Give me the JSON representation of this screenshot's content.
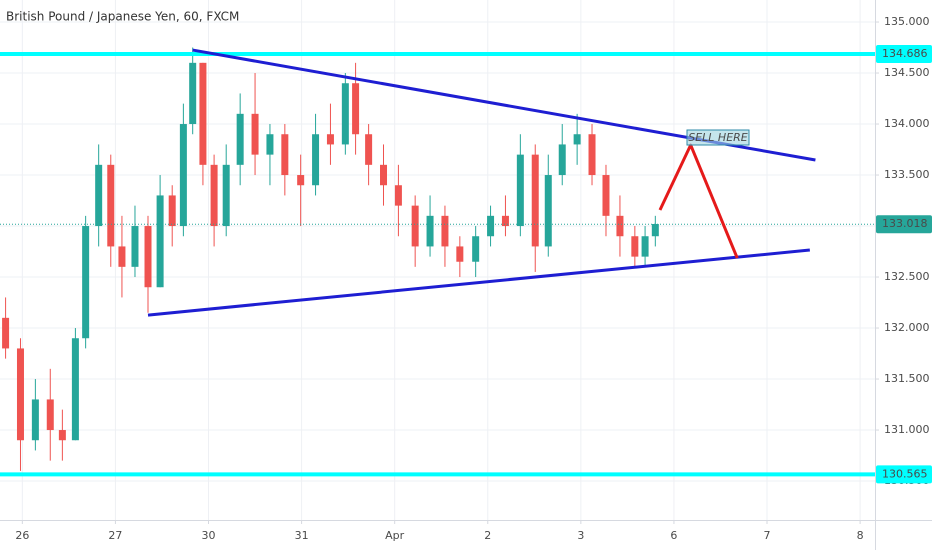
{
  "chart_data": {
    "type": "candlestick",
    "title": "British Pound / Japanese Yen, 60, FXCM",
    "xlim": [
      -0.24,
      9.16
    ],
    "ylim": [
      130.118,
      135.216
    ],
    "grid": true,
    "xticks": [
      {
        "value": 0,
        "label": "26"
      },
      {
        "value": 1,
        "label": "27"
      },
      {
        "value": 2,
        "label": "30"
      },
      {
        "value": 3,
        "label": "31"
      },
      {
        "value": 4,
        "label": "Apr"
      },
      {
        "value": 5,
        "label": "2"
      },
      {
        "value": 6,
        "label": "3"
      },
      {
        "value": 7,
        "label": "6"
      },
      {
        "value": 8,
        "label": "7"
      },
      {
        "value": 9,
        "label": "8"
      }
    ],
    "yticks": [
      {
        "value": 130.5,
        "label": "130.500"
      },
      {
        "value": 131,
        "label": "131.000"
      },
      {
        "value": 131.5,
        "label": "131.500"
      },
      {
        "value": 132,
        "label": "132.000"
      },
      {
        "value": 132.5,
        "label": "132.500"
      },
      {
        "value": 133,
        "label": "133.000"
      },
      {
        "value": 133.5,
        "label": "133.500"
      },
      {
        "value": 134,
        "label": "134.000"
      },
      {
        "value": 134.5,
        "label": "134.500"
      },
      {
        "value": 135,
        "label": "135.000"
      }
    ],
    "up_color": "#26a69a",
    "down_color": "#ef5350",
    "x": [
      -0.18,
      -0.02,
      0.14,
      0.3,
      0.43,
      0.57,
      0.68,
      0.82,
      0.95,
      1.07,
      1.21,
      1.35,
      1.48,
      1.61,
      1.73,
      1.83,
      1.94,
      2.06,
      2.19,
      2.34,
      2.5,
      2.66,
      2.82,
      2.99,
      3.15,
      3.31,
      3.47,
      3.58,
      3.72,
      3.88,
      4.04,
      4.22,
      4.38,
      4.54,
      4.7,
      4.87,
      5.03,
      5.19,
      5.35,
      5.51,
      5.65,
      5.8,
      5.96,
      6.12,
      6.27,
      6.42,
      6.58,
      6.69,
      6.8
    ],
    "open": [
      132.1,
      131.8,
      130.9,
      131.3,
      131.0,
      130.9,
      131.9,
      133.0,
      133.6,
      132.8,
      132.6,
      133.0,
      132.4,
      133.3,
      133.0,
      134.0,
      134.6,
      133.6,
      133.0,
      133.6,
      134.1,
      133.7,
      133.9,
      133.5,
      133.4,
      133.9,
      133.8,
      134.4,
      133.9,
      133.6,
      133.4,
      133.2,
      132.8,
      133.1,
      132.8,
      132.65,
      132.9,
      133.1,
      133.0,
      133.7,
      132.8,
      133.5,
      133.8,
      133.9,
      133.5,
      133.1,
      132.9,
      132.7,
      132.9
    ],
    "high": [
      132.3,
      131.9,
      131.5,
      131.6,
      131.2,
      132.0,
      133.1,
      133.8,
      133.7,
      133.1,
      133.2,
      133.1,
      133.5,
      133.4,
      134.2,
      134.75,
      134.6,
      133.7,
      133.8,
      134.3,
      134.5,
      134.0,
      134.0,
      133.7,
      134.1,
      134.2,
      134.5,
      134.6,
      134.0,
      133.8,
      133.6,
      133.3,
      133.3,
      133.2,
      132.9,
      133.0,
      133.2,
      133.3,
      133.9,
      133.8,
      133.7,
      134.0,
      134.1,
      134.0,
      133.6,
      133.3,
      133.0,
      133.0,
      133.1
    ],
    "low": [
      131.7,
      130.6,
      130.8,
      130.7,
      130.7,
      130.9,
      131.8,
      132.8,
      132.6,
      132.3,
      132.5,
      132.15,
      132.4,
      132.8,
      132.9,
      133.9,
      133.4,
      132.8,
      132.9,
      133.4,
      133.5,
      133.4,
      133.3,
      133.0,
      133.3,
      133.6,
      133.7,
      133.7,
      133.4,
      133.2,
      132.9,
      132.6,
      132.7,
      132.6,
      132.5,
      132.5,
      132.8,
      132.9,
      132.9,
      132.55,
      132.7,
      133.4,
      133.6,
      133.4,
      132.9,
      132.7,
      132.6,
      132.6,
      132.8
    ],
    "close": [
      131.8,
      130.9,
      131.3,
      131.0,
      130.9,
      131.9,
      133.0,
      133.6,
      132.8,
      132.6,
      133.0,
      132.4,
      133.3,
      133.0,
      134.0,
      134.6,
      133.6,
      133.0,
      133.6,
      134.1,
      133.7,
      133.9,
      133.5,
      133.4,
      133.9,
      133.8,
      134.4,
      133.9,
      133.6,
      133.4,
      133.2,
      132.8,
      133.1,
      132.8,
      132.65,
      132.9,
      133.1,
      133.0,
      133.7,
      132.8,
      133.5,
      133.8,
      133.9,
      133.5,
      133.1,
      132.9,
      132.7,
      132.9,
      133.02
    ],
    "hlines": [
      {
        "value": 134.686,
        "color": "#00ffff"
      },
      {
        "value": 130.565,
        "color": "#00ffff"
      },
      {
        "value": 133.018,
        "color": "#26a69a"
      }
    ],
    "drawings": [
      {
        "color": "#1e1ed2",
        "x": [
          1.83,
          8.52
        ],
        "y": [
          134.725,
          133.647
        ]
      },
      {
        "color": "#1e1ed2",
        "x": [
          1.35,
          8.46
        ],
        "y": [
          132.127,
          132.765
        ]
      },
      {
        "color": "#e51a1a",
        "x": [
          6.85,
          7.18,
          7.68
        ],
        "y": [
          133.157,
          133.794,
          132.686
        ]
      }
    ],
    "annotation": "SELL HERE"
  }
}
